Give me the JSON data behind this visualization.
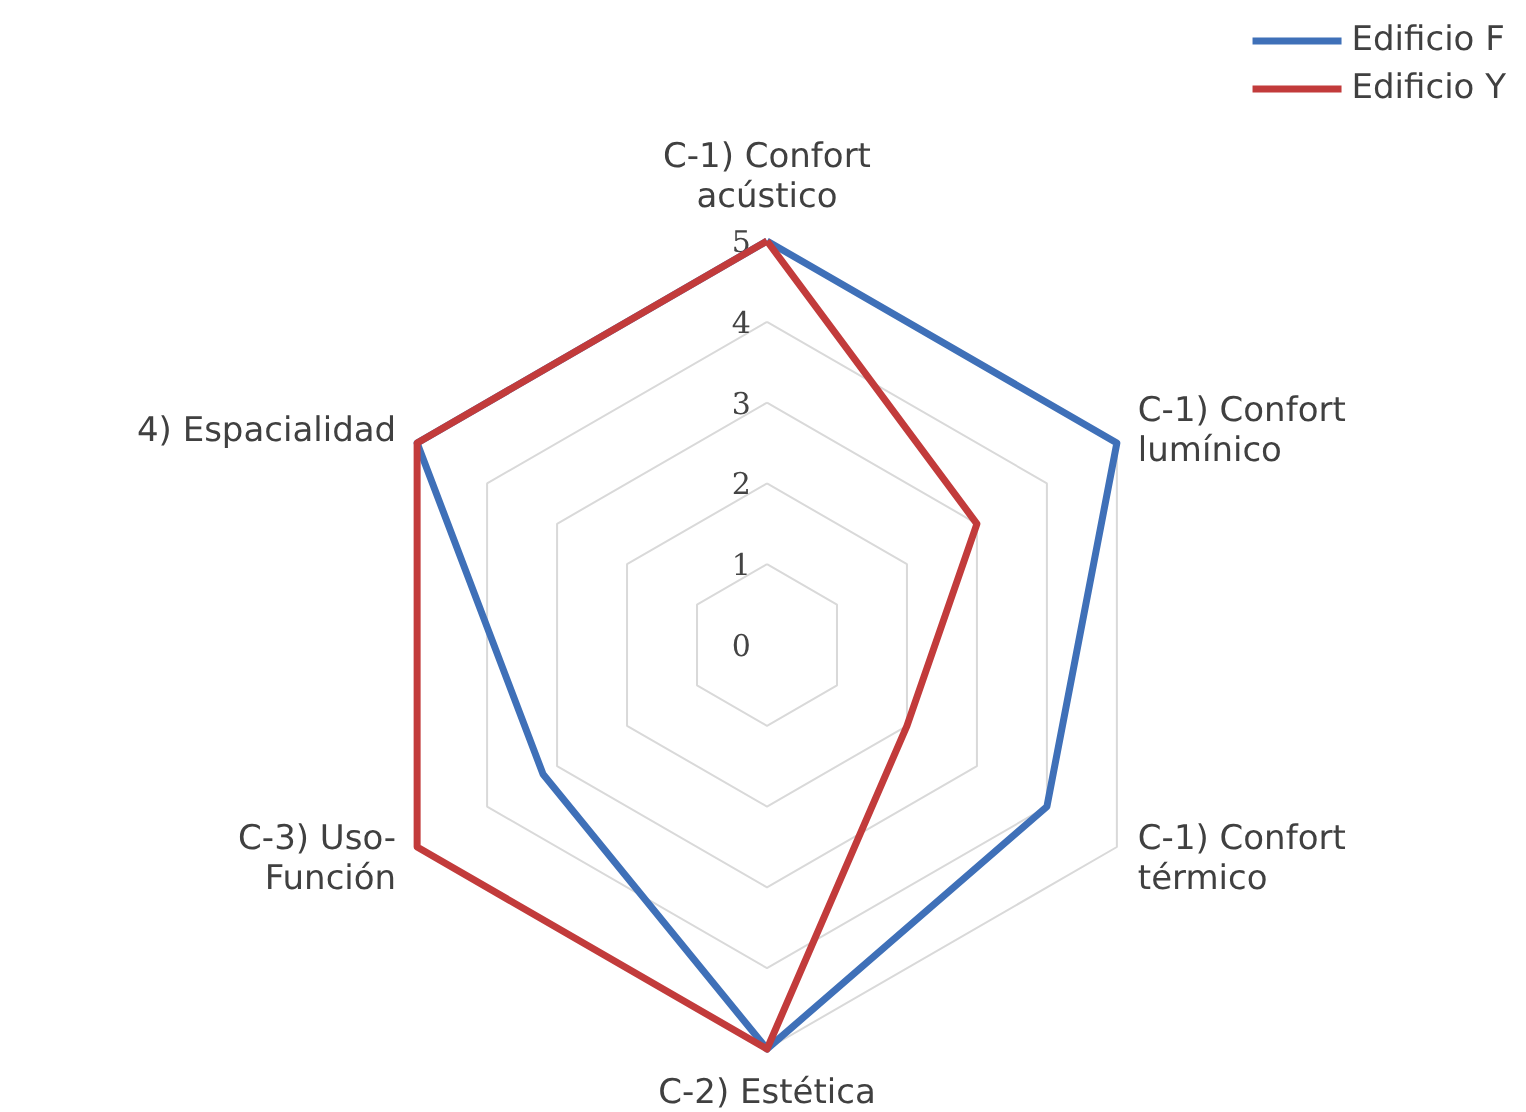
{
  "chart_data": {
    "type": "radar",
    "categories": [
      "C-1) Confort\nacústico",
      "C-1) Confort\nlumínico",
      "C-1) Confort\ntérmico",
      "C-2) Estética",
      "C-3) Uso-\nFunción",
      "4) Espacialidad"
    ],
    "series": [
      {
        "name": "Edificio F",
        "color": "#3f70b8",
        "values": [
          5,
          5,
          4,
          5,
          3.2,
          5
        ]
      },
      {
        "name": "Edificio Y",
        "color": "#c23b3b",
        "values": [
          5,
          3,
          2,
          5,
          5,
          5
        ]
      }
    ],
    "ylim": [
      0,
      5
    ],
    "yticks": [
      0,
      1,
      2,
      3,
      4,
      5
    ],
    "grid": true,
    "legend": "top right",
    "marker": "none",
    "line_style": "solid"
  }
}
